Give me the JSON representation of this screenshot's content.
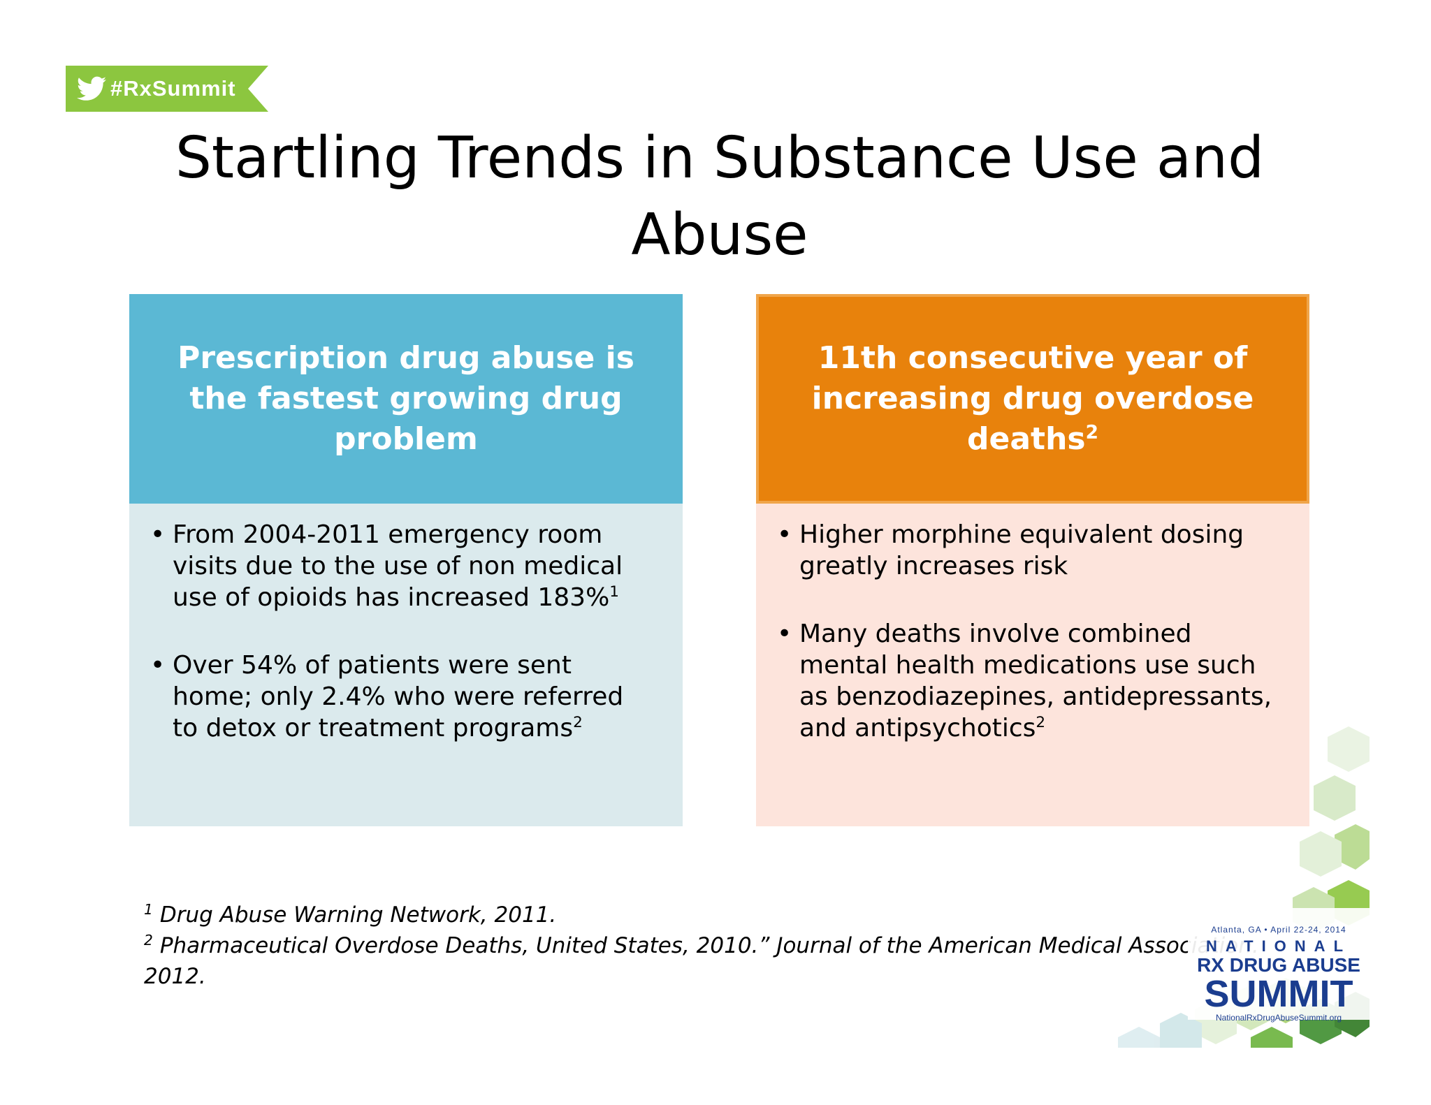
{
  "banner": {
    "hashtag": "#RxSummit",
    "icon": "twitter-bird-icon"
  },
  "title": "Startling Trends in Substance Use and Abuse",
  "left_box": {
    "heading": "Prescription drug abuse is the fastest growing drug problem",
    "bullets": [
      {
        "text": "From 2004-2011 emergency room visits due to the use of non medical use of opioids has increased 183%",
        "sup": "1"
      },
      {
        "text": "Over 54% of patients were sent home; only 2.4% who were referred to detox or treatment programs",
        "sup": "2"
      }
    ]
  },
  "right_box": {
    "heading": "11th consecutive year of increasing drug overdose deaths",
    "heading_sup": "2",
    "bullets": [
      {
        "text": "Higher morphine equivalent dosing greatly increases risk",
        "sup": ""
      },
      {
        "text": "Many deaths involve combined mental health medications use such as benzodiazepines, antidepressants, and antipsychotics",
        "sup": "2"
      }
    ]
  },
  "footnotes": [
    {
      "num": "1",
      "text": "Drug Abuse Warning Network, 2011."
    },
    {
      "num": "2",
      "text": "Pharmaceutical Overdose Deaths, United States, 2010.” Journal of the American Medical Association. 2012."
    }
  ],
  "logo": {
    "event": "Atlanta, GA • April 22-24, 2014",
    "line1": "NATIONAL",
    "line2": "RX DRUG ABUSE",
    "line3": "SUMMIT",
    "url": "NationalRxDrugAbuseSummit.org"
  },
  "colors": {
    "banner": "#8cc63f",
    "left_head": "#5bb8d4",
    "left_body": "#dbeaed",
    "right_head": "#e8820c",
    "right_body": "#fde4dc",
    "logo_text": "#1b3d8f"
  }
}
